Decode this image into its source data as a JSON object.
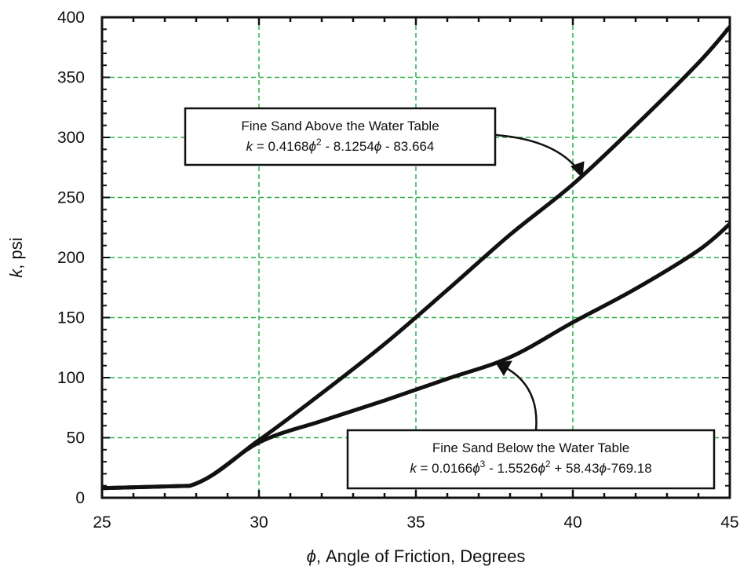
{
  "chart_data": {
    "type": "line",
    "xlabel_symbol": "ϕ",
    "xlabel_text": ", Angle of Friction, Degrees",
    "ylabel_symbol": "k",
    "ylabel_text": ", psi",
    "xlim": [
      25,
      45
    ],
    "ylim": [
      0,
      400
    ],
    "xticks": [
      25,
      30,
      35,
      40,
      45
    ],
    "yticks": [
      0,
      50,
      100,
      150,
      200,
      250,
      300,
      350,
      400
    ],
    "grid": true,
    "grid_color": "#2bb04a",
    "line_color": "#111111",
    "series": [
      {
        "x": [
          25,
          27.8,
          30,
          32,
          34,
          36,
          38,
          40,
          42,
          44,
          45
        ],
        "y": [
          8,
          10,
          48,
          87,
          128,
          173,
          219,
          261,
          310,
          362,
          392
        ]
      },
      {
        "x": [
          25,
          27.8,
          30,
          32,
          34,
          36,
          38,
          40,
          42,
          44,
          45
        ],
        "y": [
          8,
          10,
          46,
          64,
          81,
          99,
          117,
          146,
          174,
          206,
          228
        ]
      }
    ],
    "annotations": [
      {
        "line1": "Fine Sand Above the Water Table",
        "eq": [
          {
            "t": "k",
            "i": true
          },
          {
            "t": " = 0.4168"
          },
          {
            "t": "ϕ",
            "i": true
          },
          {
            "t": "2",
            "sup": true
          },
          {
            "t": " - 8.1254"
          },
          {
            "t": "ϕ",
            "i": true
          },
          {
            "t": " - 83.664"
          }
        ]
      },
      {
        "line1": "Fine Sand Below the Water Table",
        "eq": [
          {
            "t": "k",
            "i": true
          },
          {
            "t": " = 0.0166"
          },
          {
            "t": "ϕ",
            "i": true
          },
          {
            "t": "3",
            "sup": true
          },
          {
            "t": " - 1.5526"
          },
          {
            "t": "ϕ",
            "i": true
          },
          {
            "t": "2",
            "sup": true
          },
          {
            "t": " + 58.43"
          },
          {
            "t": "ϕ",
            "i": true
          },
          {
            "t": "-769.18"
          }
        ]
      }
    ]
  }
}
